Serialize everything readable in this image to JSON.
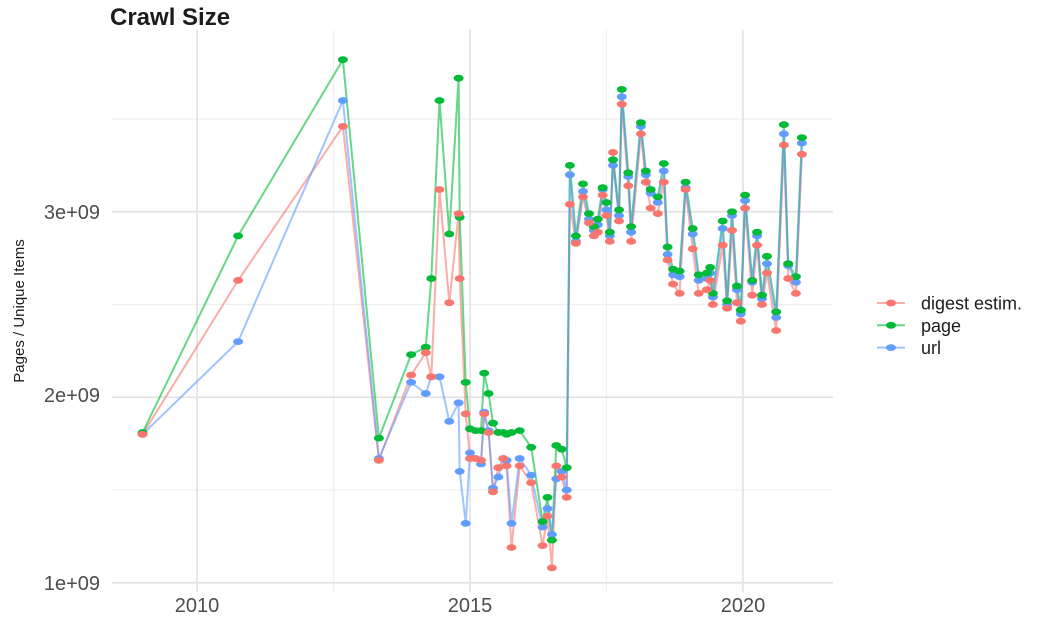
{
  "title": "Crawl Size",
  "legend": {
    "items": [
      {
        "label": "digest estim.",
        "color": "#F8766D"
      },
      {
        "label": "page",
        "color": "#00BA38"
      },
      {
        "label": "url",
        "color": "#619CFF"
      }
    ]
  },
  "chart_data": {
    "type": "line",
    "title": "Crawl Size",
    "xlabel": "",
    "ylabel": "Pages / Unique Items",
    "x_unit": "year of crawl",
    "y_unit": "count (pages / unique items)",
    "grid": true,
    "legend_position": "right",
    "xlim": [
      2008.44,
      2021.65
    ],
    "ylim": [
      950000000.0,
      3980000000.0
    ],
    "x_tick_labels": [
      "2010",
      "2015",
      "2020"
    ],
    "x_tick_values": [
      2010,
      2015,
      2020
    ],
    "x_minor_ticks": [
      2012.5,
      2017.5
    ],
    "y_tick_labels": [
      "1e+09",
      "2e+09",
      "3e+09"
    ],
    "y_tick_values": [
      1000000000.0,
      2000000000.0,
      3000000000.0
    ],
    "y_minor_ticks": [
      1500000000.0,
      2500000000.0,
      3500000000.0
    ],
    "x": [
      2009.0,
      2010.75,
      2012.67,
      2013.33,
      2013.92,
      2014.19,
      2014.29,
      2014.44,
      2014.62,
      2014.79,
      2014.81,
      2014.92,
      2015.0,
      2015.1,
      2015.2,
      2015.26,
      2015.34,
      2015.42,
      2015.52,
      2015.61,
      2015.67,
      2015.76,
      2015.91,
      2016.12,
      2016.33,
      2016.42,
      2016.5,
      2016.58,
      2016.68,
      2016.77,
      2016.83,
      2016.94,
      2017.07,
      2017.18,
      2017.27,
      2017.34,
      2017.43,
      2017.5,
      2017.56,
      2017.62,
      2017.73,
      2017.78,
      2017.9,
      2017.95,
      2018.13,
      2018.22,
      2018.31,
      2018.44,
      2018.55,
      2018.62,
      2018.72,
      2018.84,
      2018.95,
      2019.08,
      2019.19,
      2019.34,
      2019.4,
      2019.45,
      2019.63,
      2019.71,
      2019.8,
      2019.89,
      2019.96,
      2020.04,
      2020.17,
      2020.26,
      2020.35,
      2020.44,
      2020.61,
      2020.75,
      2020.83,
      2020.97,
      2021.08
    ],
    "series": [
      {
        "name": "digest estim.",
        "color": "#F8766D",
        "values": [
          1800000000.0,
          2630000000.0,
          3460000000.0,
          1660000000.0,
          2120000000.0,
          2240000000.0,
          2110000000.0,
          3120000000.0,
          2510000000.0,
          2990000000.0,
          2640000000.0,
          1910000000.0,
          1670000000.0,
          1670000000.0,
          1660000000.0,
          1910000000.0,
          1810000000.0,
          1490000000.0,
          1620000000.0,
          1670000000.0,
          1630000000.0,
          1190000000.0,
          1630000000.0,
          1540000000.0,
          1200000000.0,
          1360000000.0,
          1080000000.0,
          1630000000.0,
          1570000000.0,
          1460000000.0,
          3040000000.0,
          2830000000.0,
          3080000000.0,
          2940000000.0,
          2870000000.0,
          2890000000.0,
          3090000000.0,
          2980000000.0,
          2840000000.0,
          3320000000.0,
          2950000000.0,
          3580000000.0,
          3140000000.0,
          2840000000.0,
          3420000000.0,
          3160000000.0,
          3020000000.0,
          2990000000.0,
          3160000000.0,
          2740000000.0,
          2610000000.0,
          2560000000.0,
          3120000000.0,
          2800000000.0,
          2560000000.0,
          2580000000.0,
          2630000000.0,
          2500000000.0,
          2820000000.0,
          2480000000.0,
          2900000000.0,
          2510000000.0,
          2410000000.0,
          3020000000.0,
          2550000000.0,
          2820000000.0,
          2500000000.0,
          2670000000.0,
          2360000000.0,
          3360000000.0,
          2640000000.0,
          2560000000.0,
          3310000000.0
        ]
      },
      {
        "name": "page",
        "color": "#00BA38",
        "values": [
          1810000000.0,
          2870000000.0,
          3820000000.0,
          1780000000.0,
          2230000000.0,
          2270000000.0,
          2640000000.0,
          3600000000.0,
          2880000000.0,
          3720000000.0,
          2970000000.0,
          2080000000.0,
          1830000000.0,
          1820000000.0,
          1820000000.0,
          2130000000.0,
          2020000000.0,
          1860000000.0,
          1810000000.0,
          1810000000.0,
          1800000000.0,
          1810000000.0,
          1820000000.0,
          1730000000.0,
          1330000000.0,
          1460000000.0,
          1230000000.0,
          1740000000.0,
          1720000000.0,
          1620000000.0,
          3250000000.0,
          2870000000.0,
          3150000000.0,
          2990000000.0,
          2920000000.0,
          2960000000.0,
          3130000000.0,
          3050000000.0,
          2890000000.0,
          3280000000.0,
          3010000000.0,
          3660000000.0,
          3210000000.0,
          2920000000.0,
          3480000000.0,
          3220000000.0,
          3120000000.0,
          3080000000.0,
          3260000000.0,
          2810000000.0,
          2690000000.0,
          2680000000.0,
          3160000000.0,
          2910000000.0,
          2660000000.0,
          2670000000.0,
          2700000000.0,
          2560000000.0,
          2950000000.0,
          2520000000.0,
          3000000000.0,
          2600000000.0,
          2470000000.0,
          3090000000.0,
          2630000000.0,
          2890000000.0,
          2550000000.0,
          2760000000.0,
          2460000000.0,
          3470000000.0,
          2720000000.0,
          2650000000.0,
          3400000000.0
        ]
      },
      {
        "name": "url",
        "color": "#619CFF",
        "values": [
          1800000000.0,
          2300000000.0,
          3600000000.0,
          1670000000.0,
          2080000000.0,
          2020000000.0,
          2110000000.0,
          2110000000.0,
          1870000000.0,
          1970000000.0,
          1600000000.0,
          1320000000.0,
          1700000000.0,
          1670000000.0,
          1640000000.0,
          1920000000.0,
          1820000000.0,
          1510000000.0,
          1570000000.0,
          1670000000.0,
          1660000000.0,
          1320000000.0,
          1670000000.0,
          1580000000.0,
          1300000000.0,
          1400000000.0,
          1260000000.0,
          1560000000.0,
          1600000000.0,
          1500000000.0,
          3200000000.0,
          2840000000.0,
          3110000000.0,
          2960000000.0,
          2900000000.0,
          2930000000.0,
          3120000000.0,
          3010000000.0,
          2870000000.0,
          3250000000.0,
          2980000000.0,
          3620000000.0,
          3190000000.0,
          2890000000.0,
          3460000000.0,
          3200000000.0,
          3100000000.0,
          3050000000.0,
          3220000000.0,
          2770000000.0,
          2660000000.0,
          2650000000.0,
          3130000000.0,
          2880000000.0,
          2630000000.0,
          2640000000.0,
          2670000000.0,
          2540000000.0,
          2910000000.0,
          2500000000.0,
          2980000000.0,
          2580000000.0,
          2450000000.0,
          3060000000.0,
          2620000000.0,
          2870000000.0,
          2530000000.0,
          2720000000.0,
          2430000000.0,
          3420000000.0,
          2710000000.0,
          2620000000.0,
          3370000000.0
        ]
      }
    ]
  }
}
